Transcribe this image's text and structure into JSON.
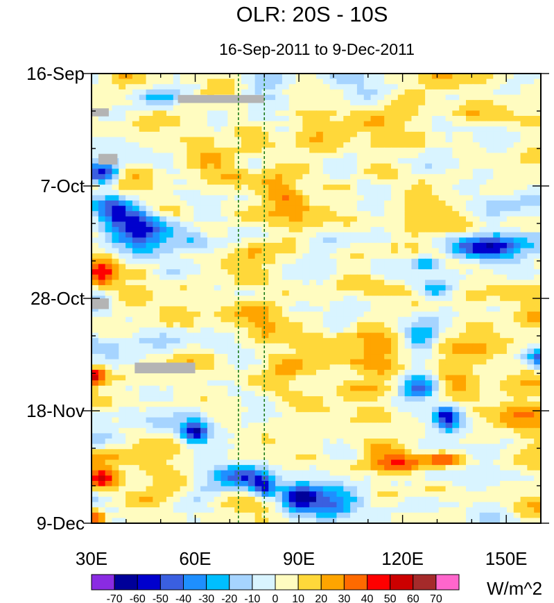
{
  "chart_data": {
    "type": "heatmap",
    "title": "OLR: 20S - 10S",
    "subtitle": "16-Sep-2011 to 9-Dec-2011",
    "x_axis": {
      "range": [
        30,
        160
      ],
      "unit": "degrees longitude East",
      "ticks": [
        30,
        60,
        90,
        120,
        150
      ],
      "tick_labels": [
        "30E",
        "60E",
        "90E",
        "120E",
        "150E"
      ],
      "minor_step": 10
    },
    "y_axis": {
      "range_days": [
        0,
        84
      ],
      "direction": "time increases downward",
      "ticks_days": [
        0,
        21,
        42,
        63,
        84
      ],
      "tick_labels": [
        "16-Sep",
        "7-Oct",
        "28-Oct",
        "18-Nov",
        "9-Dec"
      ],
      "minor_step_days": 7
    },
    "reference_lines_lon": [
      72.5,
      80
    ],
    "colorbar": {
      "unit": "W/m^2",
      "levels": [
        -70,
        -60,
        -50,
        -40,
        -30,
        -20,
        -10,
        0,
        10,
        20,
        30,
        40,
        50,
        60,
        70
      ],
      "level_labels": [
        "-70",
        "-60",
        "-50",
        "-40",
        "-30",
        "-20",
        "-10",
        "0",
        "10",
        "20",
        "30",
        "40",
        "50",
        "60",
        "70"
      ],
      "colors": [
        "#8a2be2",
        "#000099",
        "#0000cd",
        "#3a5fe0",
        "#1e8fff",
        "#00bfff",
        "#a6d4ff",
        "#d9f4ff",
        "#fffcc0",
        "#ffd83a",
        "#ffa500",
        "#ff6a00",
        "#ff0000",
        "#cc0000",
        "#a52a2a",
        "#ff66cc"
      ]
    },
    "missing_color": "#b4b4b4",
    "missing_segments": [
      {
        "lon": [
          55,
          80
        ],
        "day": [
          4,
          5.5
        ]
      },
      {
        "lon": [
          30,
          35
        ],
        "day": [
          6.5,
          8
        ]
      },
      {
        "lon": [
          32,
          37.5
        ],
        "day": [
          15,
          17
        ]
      },
      {
        "lon": [
          30,
          35
        ],
        "day": [
          42,
          44
        ]
      },
      {
        "lon": [
          42.5,
          60
        ],
        "day": [
          54,
          56
        ]
      }
    ],
    "anomaly_features": [
      {
        "lon": 48,
        "day": 4.5,
        "value": -35,
        "sx": 6,
        "sy": 1.6
      },
      {
        "lon": 33,
        "day": 19,
        "value": -60,
        "sx": 5,
        "sy": 2.0
      },
      {
        "lon": 44,
        "day": 29,
        "value": -70,
        "sx": 10,
        "sy": 3.0,
        "tilt": 0.25
      },
      {
        "lon": 36,
        "day": 26,
        "value": -40,
        "sx": 6,
        "sy": 2.5
      },
      {
        "lon": 60,
        "day": 31,
        "value": -30,
        "sx": 6,
        "sy": 2.0
      },
      {
        "lon": 145,
        "day": 32.5,
        "value": -70,
        "sx": 9,
        "sy": 2.0
      },
      {
        "lon": 127,
        "day": 35.5,
        "value": -45,
        "sx": 4,
        "sy": 1.3
      },
      {
        "lon": 130,
        "day": 40.5,
        "value": -30,
        "sx": 4,
        "sy": 1.5
      },
      {
        "lon": 125,
        "day": 49,
        "value": -45,
        "sx": 5,
        "sy": 2.5
      },
      {
        "lon": 125,
        "day": 58,
        "value": -60,
        "sx": 6,
        "sy": 3.0
      },
      {
        "lon": 133,
        "day": 64,
        "value": -70,
        "sx": 4,
        "sy": 2.0
      },
      {
        "lon": 160,
        "day": 53,
        "value": -40,
        "sx": 4,
        "sy": 2.0
      },
      {
        "lon": 60,
        "day": 67,
        "value": -65,
        "sx": 4,
        "sy": 2.0
      },
      {
        "lon": 73,
        "day": 75,
        "value": -60,
        "sx": 8,
        "sy": 2.0
      },
      {
        "lon": 90,
        "day": 79.5,
        "value": -70,
        "sx": 6,
        "sy": 2.5
      },
      {
        "lon": 80,
        "day": 77.5,
        "value": -45,
        "sx": 3,
        "sy": 2.0
      },
      {
        "lon": 100,
        "day": 81,
        "value": -30,
        "sx": 6,
        "sy": 2.0
      },
      {
        "lon": 33,
        "day": 38,
        "value": 45,
        "sx": 4,
        "sy": 2.5
      },
      {
        "lon": 31,
        "day": 56.5,
        "value": 40,
        "sx": 3,
        "sy": 2.0
      },
      {
        "lon": 33,
        "day": 75.5,
        "value": 50,
        "sx": 4,
        "sy": 2.0
      },
      {
        "lon": 31,
        "day": 83,
        "value": 40,
        "sx": 3,
        "sy": 1.5
      },
      {
        "lon": 132,
        "day": 72,
        "value": 45,
        "sx": 7,
        "sy": 1.5
      },
      {
        "lon": 118,
        "day": 73,
        "value": 30,
        "sx": 7,
        "sy": 2.0
      },
      {
        "lon": 85,
        "day": 24,
        "value": 18,
        "sx": 12,
        "sy": 6.0
      },
      {
        "lon": 80,
        "day": 46,
        "value": 22,
        "sx": 8,
        "sy": 5.0
      },
      {
        "lon": 40,
        "day": 42,
        "value": 20,
        "sx": 8,
        "sy": 3.0
      },
      {
        "lon": 150,
        "day": 64,
        "value": 18,
        "sx": 8,
        "sy": 4.0
      },
      {
        "lon": 110,
        "day": 53,
        "value": 15,
        "sx": 10,
        "sy": 5.0
      }
    ]
  }
}
